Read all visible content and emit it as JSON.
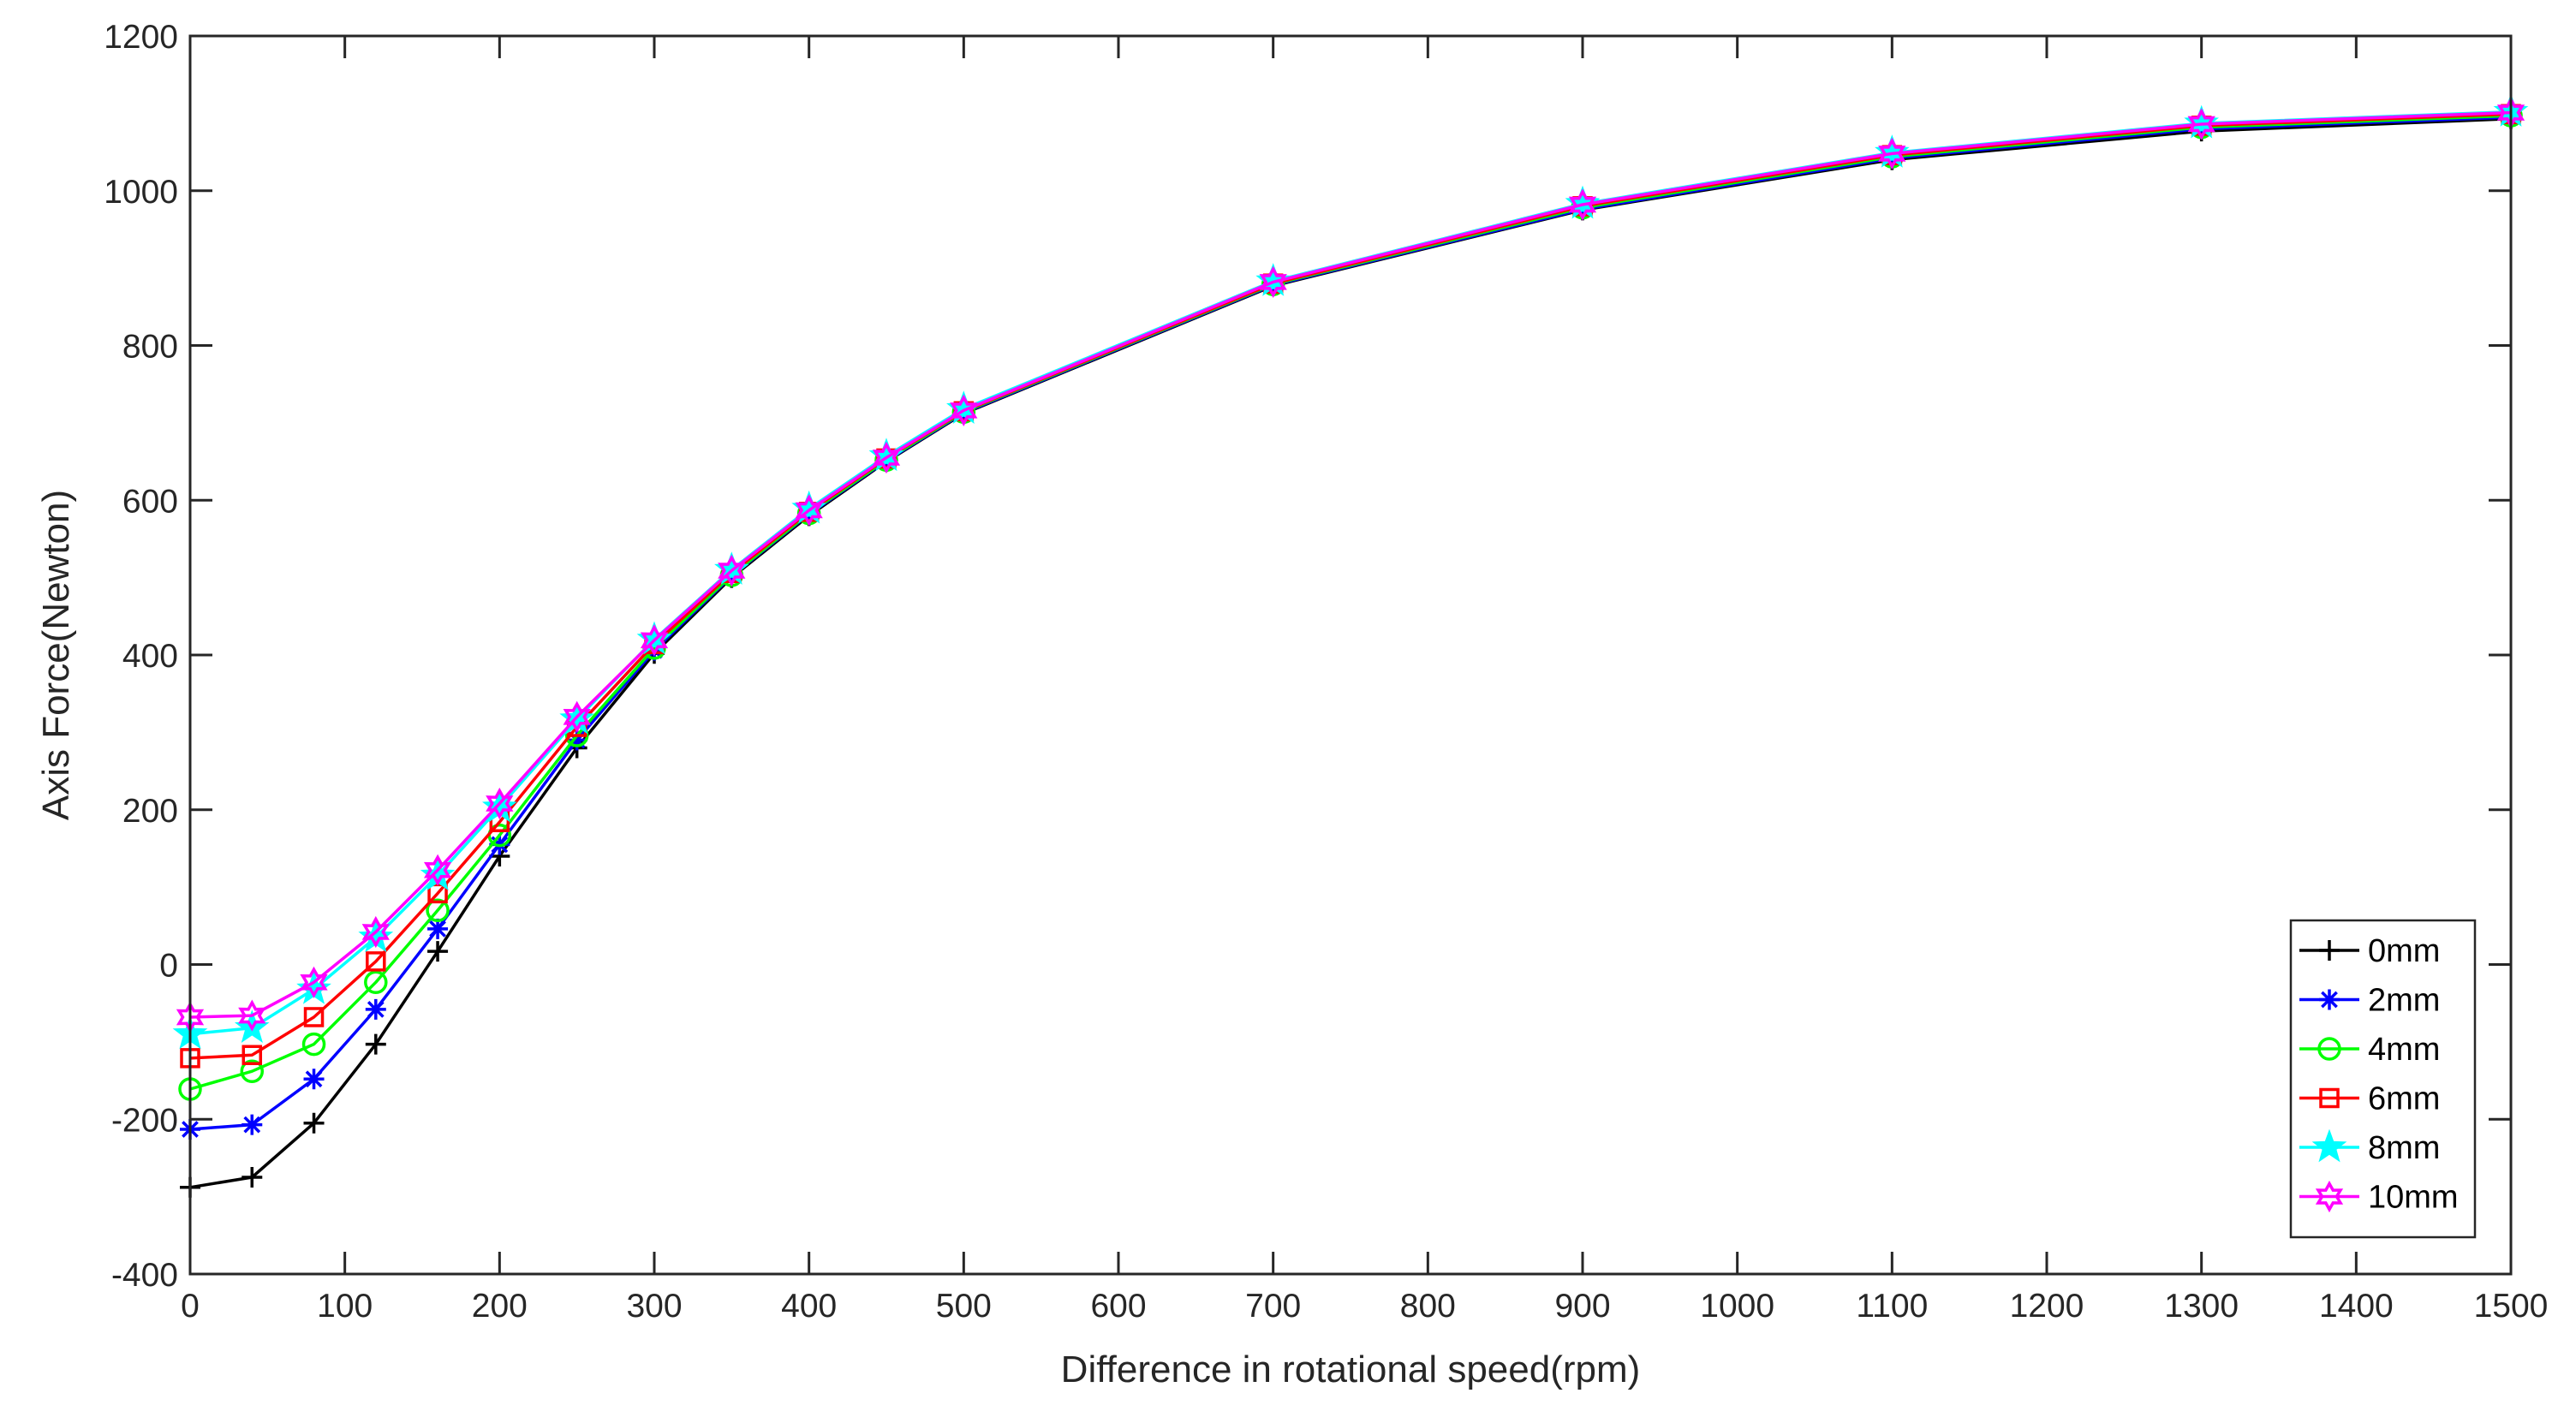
{
  "chart_data": {
    "type": "line",
    "title": "",
    "xlabel": "Difference in rotational speed(rpm)",
    "ylabel": "Axis Force(Newton)",
    "xlim": [
      0,
      1500
    ],
    "ylim": [
      -400,
      1200
    ],
    "xticks": [
      0,
      100,
      200,
      300,
      400,
      500,
      600,
      700,
      800,
      900,
      1000,
      1100,
      1200,
      1300,
      1400,
      1500
    ],
    "yticks": [
      -400,
      -200,
      0,
      200,
      400,
      600,
      800,
      1000,
      1200
    ],
    "grid": false,
    "legend_position": "bottom-right",
    "x": [
      0,
      40,
      80,
      120,
      160,
      200,
      250,
      300,
      350,
      400,
      450,
      500,
      700,
      900,
      1100,
      1300,
      1500
    ],
    "series": [
      {
        "name": "0mm",
        "color": "#000000",
        "marker": "plus",
        "values": [
          -288,
          -275,
          -205,
          -103,
          17,
          140,
          280,
          402,
          500,
          580,
          650,
          712,
          877,
          975,
          1040,
          1077,
          1093
        ]
      },
      {
        "name": "2mm",
        "color": "#0000ff",
        "marker": "asterisk",
        "values": [
          -213,
          -207,
          -148,
          -58,
          46,
          155,
          290,
          406,
          502,
          582,
          651,
          713,
          878,
          976,
          1042,
          1080,
          1095
        ]
      },
      {
        "name": "4mm",
        "color": "#00ff00",
        "marker": "circle",
        "values": [
          -161,
          -138,
          -103,
          -23,
          70,
          167,
          296,
          409,
          503,
          583,
          652,
          714,
          879,
          978,
          1044,
          1082,
          1097
        ]
      },
      {
        "name": "6mm",
        "color": "#ff0000",
        "marker": "square",
        "values": [
          -121,
          -117,
          -68,
          4,
          92,
          184,
          307,
          414,
          506,
          585,
          654,
          715,
          880,
          980,
          1046,
          1084,
          1099
        ]
      },
      {
        "name": "8mm",
        "color": "#00ffff",
        "marker": "star",
        "values": [
          -90,
          -82,
          -32,
          35,
          115,
          203,
          317,
          420,
          510,
          589,
          657,
          718,
          883,
          983,
          1049,
          1087,
          1102
        ]
      },
      {
        "name": "10mm",
        "color": "#ff00ff",
        "marker": "hexagram",
        "values": [
          -68,
          -66,
          -23,
          42,
          122,
          208,
          320,
          419,
          509,
          587,
          655,
          716,
          882,
          982,
          1048,
          1086,
          1101
        ]
      }
    ]
  }
}
